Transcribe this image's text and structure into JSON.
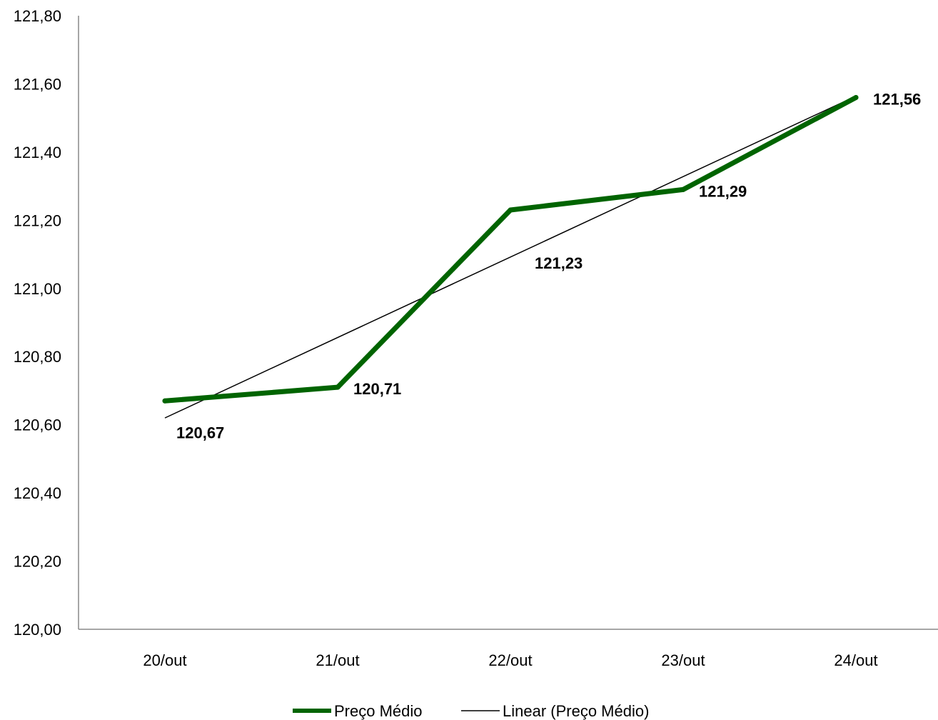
{
  "chart_data": {
    "type": "line",
    "categories": [
      "20/out",
      "21/out",
      "22/out",
      "23/out",
      "24/out"
    ],
    "series": [
      {
        "name": "Preço Médio",
        "values": [
          120.67,
          120.71,
          121.23,
          121.29,
          121.56
        ],
        "labels": [
          "120,67",
          "120,71",
          "121,23",
          "121,29",
          "121,56"
        ],
        "color": "#006400"
      },
      {
        "name": "Linear (Preço Médio)",
        "trendline_of": "Preço Médio",
        "trendline_type": "linear",
        "color": "#000000"
      }
    ],
    "ylim": [
      120.0,
      121.8
    ],
    "yticks": [
      120.0,
      120.2,
      120.4,
      120.6,
      120.8,
      121.0,
      121.2,
      121.4,
      121.6,
      121.8
    ],
    "ytick_labels": [
      "120,00",
      "120,20",
      "120,40",
      "120,60",
      "120,80",
      "121,00",
      "121,20",
      "121,40",
      "121,60",
      "121,80"
    ],
    "grid": false,
    "legend": "bottom",
    "title": "",
    "xlabel": "",
    "ylabel": ""
  }
}
